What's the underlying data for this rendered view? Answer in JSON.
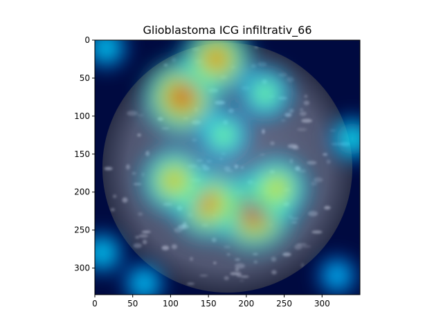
{
  "chart_data": {
    "type": "heatmap",
    "title": "Glioblastoma ICG infiltrativ_66",
    "xlabel": "",
    "ylabel": "",
    "xlim": [
      0,
      350
    ],
    "ylim": [
      335,
      0
    ],
    "x_ticks": [
      0,
      50,
      100,
      150,
      200,
      250,
      300
    ],
    "y_ticks": [
      0,
      50,
      100,
      150,
      200,
      250,
      300
    ],
    "colormap": "jet",
    "overlay_alpha": 0.35,
    "grid": false,
    "field_of_view": {
      "center": [
        175,
        168
      ],
      "radius": 165
    },
    "hotspots": [
      {
        "x": 115,
        "y": 75,
        "intensity": 0.95
      },
      {
        "x": 160,
        "y": 25,
        "intensity": 0.85
      },
      {
        "x": 210,
        "y": 225,
        "intensity": 1.0
      },
      {
        "x": 150,
        "y": 215,
        "intensity": 0.85
      },
      {
        "x": 105,
        "y": 185,
        "intensity": 0.75
      },
      {
        "x": 240,
        "y": 195,
        "intensity": 0.7
      },
      {
        "x": 170,
        "y": 125,
        "intensity": 0.5
      },
      {
        "x": 225,
        "y": 70,
        "intensity": 0.5
      },
      {
        "x": 340,
        "y": 130,
        "intensity": 0.35
      },
      {
        "x": 10,
        "y": 280,
        "intensity": 0.3
      },
      {
        "x": 65,
        "y": 320,
        "intensity": 0.28
      },
      {
        "x": 15,
        "y": 10,
        "intensity": 0.3
      },
      {
        "x": 320,
        "y": 310,
        "intensity": 0.25
      }
    ]
  }
}
